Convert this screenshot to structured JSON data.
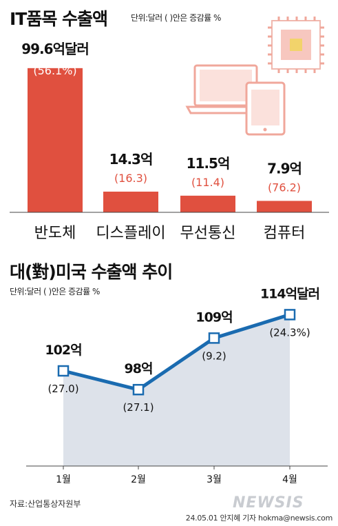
{
  "top": {
    "title": "IT품목 수출액",
    "unit_note": "단위:달러 ( )안은 증감률 %"
  },
  "bottom": {
    "title": "대(對)미국 수출액 추이",
    "unit_note": "단위:달러 ( )안은 증감률 %"
  },
  "footer": {
    "source": "자료:산업통상자원부",
    "credit": "24.05.01 안지혜 기자 hokma@newsis.com",
    "watermark": "NEWSIS"
  },
  "colors": {
    "bar": "#e0503f",
    "line": "#1a6bb0",
    "area": "#dde2ea",
    "pct": "#e0503f"
  },
  "icons": [
    "chip-icon",
    "laptop-icon",
    "tablet-icon"
  ],
  "chart_data": [
    {
      "type": "bar",
      "title": "IT품목 수출액",
      "categories": [
        "반도체",
        "디스플레이",
        "무선통신",
        "컴퓨터"
      ],
      "values": [
        99.6,
        14.3,
        11.5,
        7.9
      ],
      "value_labels": [
        "99.6억달러",
        "14.3억",
        "11.5억",
        "7.9억"
      ],
      "change_labels": [
        "(56.1%)",
        "(16.3)",
        "(11.4)",
        "(76.2)"
      ],
      "ylim": [
        0,
        100
      ]
    },
    {
      "type": "line",
      "title": "대(對)미국 수출액 추이",
      "categories": [
        "1월",
        "2월",
        "3월",
        "4월"
      ],
      "values": [
        102,
        98,
        109,
        114
      ],
      "value_labels": [
        "102억",
        "98억",
        "109억",
        "114억달러"
      ],
      "change_labels": [
        "(27.0)",
        "(27.1)",
        "(9.2)",
        "(24.3%)"
      ]
    }
  ]
}
